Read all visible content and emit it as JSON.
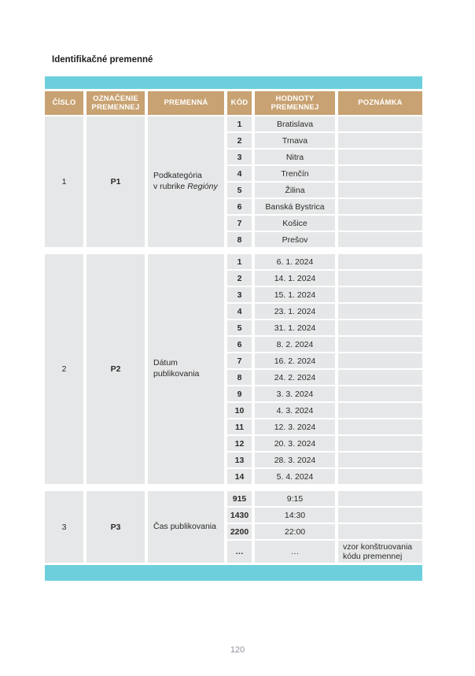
{
  "page": {
    "title": "Identifikačné premenné",
    "page_number": "120"
  },
  "colors": {
    "teal_bar": "#6ecfdc",
    "header_tan": "#c8a272",
    "cell_gray": "#e6e7e8",
    "text_dark": "#2b2a29",
    "page_number_gray": "#8d929c"
  },
  "table": {
    "headers": [
      "ČÍSLO",
      "OZNAČENIE PREMENNEJ",
      "PREMENNÁ",
      "KÓD",
      "HODNOTY PREMENNEJ",
      "POZNÁMKA"
    ],
    "sections": [
      {
        "number": "1",
        "designation": "P1",
        "variable_lines": [
          {
            "text": "Podkategória"
          },
          {
            "text": "v rubrike ",
            "italic": "Regióny"
          }
        ],
        "rows": [
          {
            "code": "1",
            "value": "Bratislava",
            "note": ""
          },
          {
            "code": "2",
            "value": "Trnava",
            "note": ""
          },
          {
            "code": "3",
            "value": "Nitra",
            "note": ""
          },
          {
            "code": "4",
            "value": "Trenčín",
            "note": ""
          },
          {
            "code": "5",
            "value": "Žilina",
            "note": ""
          },
          {
            "code": "6",
            "value": "Banská Bystrica",
            "note": ""
          },
          {
            "code": "7",
            "value": "Košice",
            "note": ""
          },
          {
            "code": "8",
            "value": "Prešov",
            "note": ""
          }
        ]
      },
      {
        "number": "2",
        "designation": "P2",
        "variable_lines": [
          {
            "text": "Dátum"
          },
          {
            "text": "publikovania"
          }
        ],
        "rows": [
          {
            "code": "1",
            "value": "6. 1. 2024",
            "note": ""
          },
          {
            "code": "2",
            "value": "14. 1. 2024",
            "note": ""
          },
          {
            "code": "3",
            "value": "15. 1. 2024",
            "note": ""
          },
          {
            "code": "4",
            "value": "23. 1. 2024",
            "note": ""
          },
          {
            "code": "5",
            "value": "31. 1. 2024",
            "note": ""
          },
          {
            "code": "6",
            "value": "8. 2. 2024",
            "note": ""
          },
          {
            "code": "7",
            "value": "16. 2. 2024",
            "note": ""
          },
          {
            "code": "8",
            "value": "24. 2. 2024",
            "note": ""
          },
          {
            "code": "9",
            "value": "3. 3. 2024",
            "note": ""
          },
          {
            "code": "10",
            "value": "4. 3. 2024",
            "note": ""
          },
          {
            "code": "11",
            "value": "12. 3. 2024",
            "note": ""
          },
          {
            "code": "12",
            "value": "20. 3. 2024",
            "note": ""
          },
          {
            "code": "13",
            "value": "28. 3. 2024",
            "note": ""
          },
          {
            "code": "14",
            "value": "5. 4. 2024",
            "note": ""
          }
        ]
      },
      {
        "number": "3",
        "designation": "P3",
        "variable_lines": [
          {
            "text": "Čas publikovania"
          }
        ],
        "rows": [
          {
            "code": "915",
            "value": "9:15",
            "note": ""
          },
          {
            "code": "1430",
            "value": "14:30",
            "note": ""
          },
          {
            "code": "2200",
            "value": "22:00",
            "note": ""
          },
          {
            "code": "…",
            "value": "…",
            "note": "vzor konštruovania kódu premennej",
            "tall": true
          }
        ]
      }
    ]
  }
}
